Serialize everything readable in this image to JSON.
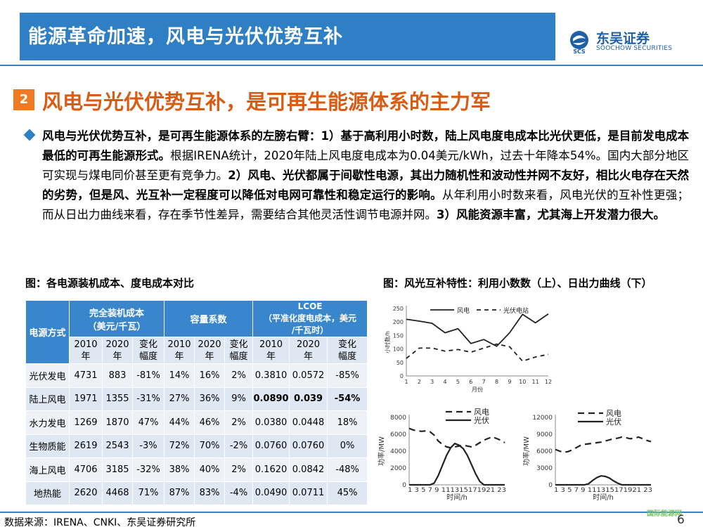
{
  "header": {
    "title": "能源革命加速，风电与光伏优势互补",
    "logo_name": "东吴证券",
    "logo_sub": "SOOCHOW SECURITIES",
    "logo_mark": "SCS"
  },
  "section": {
    "number": "2",
    "title": "风电与光伏优势互补，是可再生能源体系的主力军"
  },
  "body": {
    "p1_bold": "风电与光伏优势互补，是可再生能源体系的左膀右臂：1）基于高利用小时数，陆上风电度电成本比光伏更低，是目前发电成本最低的可再生能源形式。",
    "p2": "根据IRENA统计，2020年陆上风电度电成本为0.04美元/kWh，过去十年降本54%。国内大部分地区可实现与煤电同价甚至更有竞争力。",
    "p3_bold": "2）风电、光伏都属于间歇性电源，其出力随机性和波动性并网不友好，相比火电存在天然的劣势，但是风、光互补一定程度可以降低对电网可靠性和稳定运行的影响。",
    "p4": "从年利用小时数来看，风电光伏的互补性更强；而从日出力曲线来看，存在季节性差异，需要结合其他灵活性调节电源并网。",
    "p5_bold": "3）风能资源丰富，尤其海上开发潜力很大。"
  },
  "left_caption": "图：各电源装机成本、度电成本对比",
  "right_caption": "图：风光互补特性：利用小数数（上）、日出力曲线（下）",
  "table": {
    "col_source": "电源方式",
    "group1": "完全装机成本\n（美元/千瓦）",
    "group2": "容量系数",
    "group3": "LCOE\n（平准化度电成本，美元\n/千瓦时）",
    "sub": [
      "2010\n年",
      "2020\n年",
      "变化\n幅度",
      "2010\n年",
      "2020\n年",
      "变化\n幅度",
      "2010\n年",
      "2020\n年",
      "变化\n幅度"
    ],
    "rows": [
      {
        "name": "光伏发电",
        "cells": [
          "4731",
          "883",
          "-81%",
          "14%",
          "16%",
          "2%",
          "0.3810",
          "0.0572",
          "-85%"
        ]
      },
      {
        "name": "陆上风电",
        "cells": [
          "1971",
          "1355",
          "-31%",
          "27%",
          "36%",
          "9%",
          "0.0890",
          "0.039",
          "-54%"
        ]
      },
      {
        "name": "水力发电",
        "cells": [
          "1269",
          "1870",
          "47%",
          "44%",
          "46%",
          "2%",
          "0.0380",
          "0.0448",
          "18%"
        ]
      },
      {
        "name": "生物质能",
        "cells": [
          "2619",
          "2543",
          "-3%",
          "72%",
          "70%",
          "-2%",
          "0.0760",
          "0.0760",
          "0%"
        ]
      },
      {
        "name": "海上风电",
        "cells": [
          "4706",
          "3185",
          "-32%",
          "38%",
          "40%",
          "2%",
          "0.1620",
          "0.0842",
          "-48%"
        ]
      },
      {
        "name": "地热能",
        "cells": [
          "2620",
          "4468",
          "71%",
          "87%",
          "83%",
          "-4%",
          "0.0490",
          "0.0711",
          "45%"
        ]
      }
    ]
  },
  "chart_data": [
    {
      "type": "line",
      "xlabel": "月份",
      "ylabel": "小时数/h",
      "ylim": [
        0,
        250
      ],
      "yticks": [
        0,
        50,
        100,
        150,
        200,
        250
      ],
      "x": [
        1,
        2,
        3,
        4,
        5,
        6,
        7,
        8,
        9,
        10,
        11,
        12
      ],
      "legend_position": "top",
      "series": [
        {
          "name": "风电",
          "style": "solid",
          "values": [
            210,
            203,
            195,
            160,
            175,
            120,
            135,
            110,
            160,
            228,
            197,
            230
          ]
        },
        {
          "name": "光伏电站",
          "style": "dashed",
          "values": [
            65,
            103,
            103,
            92,
            98,
            88,
            103,
            118,
            108,
            55,
            70,
            80
          ]
        }
      ]
    },
    {
      "type": "line",
      "xlabel": "时间/h",
      "ylabel": "功率/MW",
      "ylim": [
        0,
        8000
      ],
      "yticks": [
        0,
        2000,
        4000,
        6000,
        8000
      ],
      "x": [
        1,
        2,
        3,
        4,
        5,
        6,
        7,
        8,
        9,
        10,
        11,
        12,
        13,
        14,
        15,
        16,
        17,
        18,
        19,
        20,
        21,
        22,
        23,
        24
      ],
      "xtick_labels": "1 3 5 7 9 111315171921 23",
      "legend_position": "top-right",
      "series": [
        {
          "name": "风电",
          "style": "dashed",
          "values": [
            6700,
            6500,
            6400,
            6350,
            6400,
            6300,
            5900,
            5200,
            4800,
            4500,
            4400,
            4500,
            4600,
            4700,
            4600,
            4500,
            4700,
            5000,
            5300,
            5500,
            5700,
            5500,
            5300,
            5000
          ]
        },
        {
          "name": "光伏",
          "style": "solid",
          "values": [
            0,
            0,
            0,
            0,
            0,
            0,
            200,
            1100,
            2300,
            3500,
            4400,
            4900,
            4700,
            4300,
            3500,
            2400,
            1300,
            400,
            0,
            0,
            0,
            0,
            0,
            0
          ]
        }
      ]
    },
    {
      "type": "line",
      "xlabel": "时间/h",
      "ylabel": "功率/MW",
      "ylim": [
        0,
        12000
      ],
      "yticks": [
        0,
        3000,
        6000,
        9000,
        12000
      ],
      "x": [
        1,
        2,
        3,
        4,
        5,
        6,
        7,
        8,
        9,
        10,
        11,
        12,
        13,
        14,
        15,
        16,
        17,
        18,
        19,
        20,
        21,
        22,
        23,
        24
      ],
      "xtick_labels": "1 3 5 7 9 111315171921 23",
      "legend_position": "top-right",
      "series": [
        {
          "name": "风电",
          "style": "dashed",
          "values": [
            6300,
            6000,
            5800,
            5900,
            6200,
            6600,
            7000,
            7200,
            7300,
            7400,
            7500,
            7600,
            7800,
            8000,
            8200,
            8300,
            8500,
            8400,
            8200,
            8300,
            8500,
            8200,
            7900,
            7700
          ]
        },
        {
          "name": "光伏",
          "style": "solid",
          "values": [
            0,
            0,
            0,
            0,
            0,
            0,
            0,
            0,
            200,
            800,
            1300,
            1600,
            1500,
            1200,
            700,
            300,
            0,
            0,
            0,
            0,
            0,
            0,
            0,
            0
          ]
        }
      ]
    }
  ],
  "footer": {
    "source": "数据来源：IRENA、CNKI、东吴证券研究所",
    "page": "6",
    "watermark": "国际能源网"
  },
  "colors": {
    "header_blue": "#2f7fc5",
    "accent_orange": "#f07a22",
    "table_header": "#3a86cd"
  }
}
